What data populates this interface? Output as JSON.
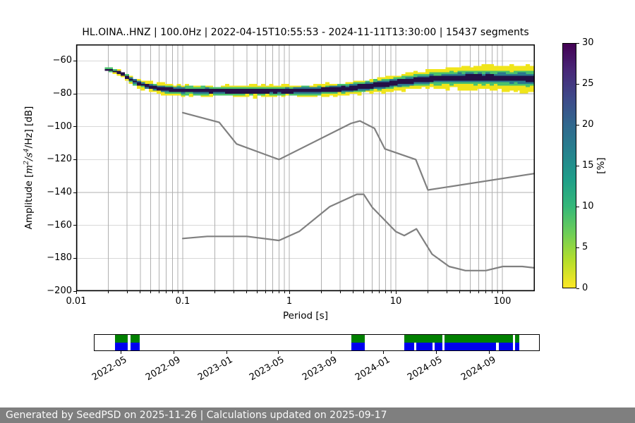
{
  "title": "HL.OINA..HNZ | 100.0Hz | 2022-04-15T10:55:53 - 2024-11-11T13:30:00 | 15437 segments",
  "footer": {
    "text": "Generated by SeedPSD on 2025-11-26 | Calculations updated on 2025-09-17",
    "bg_color": "#7f7f7f",
    "text_color": "#fafafa"
  },
  "chart_data": {
    "type": "heatmap",
    "title": "HL.OINA..HNZ | 100.0Hz | 2022-04-15T10:55:53 - 2024-11-11T13:30:00 | 15437 segments",
    "xlabel": "Period [s]",
    "ylabel": "Amplitude [m²/s⁴/Hz] [dB]",
    "ylabel_parts": {
      "p1": "Amplitude [",
      "m": "m",
      "sup2": "2",
      "s": "/s",
      "sup4": "4",
      "p2": "/Hz] [dB]"
    },
    "xscale": "log",
    "xlim": [
      0.01,
      199
    ],
    "ylim": [
      -200,
      -50
    ],
    "grid": true,
    "grid_color": "#b0b0b0",
    "xticks": [
      {
        "v": 0.01,
        "label": "0.01"
      },
      {
        "v": 0.1,
        "label": "0.1"
      },
      {
        "v": 1,
        "label": "1"
      },
      {
        "v": 10,
        "label": "10"
      },
      {
        "v": 100,
        "label": "100"
      }
    ],
    "yticks": [
      {
        "v": -60,
        "label": "−60"
      },
      {
        "v": -80,
        "label": "−80"
      },
      {
        "v": -100,
        "label": "−100"
      },
      {
        "v": -120,
        "label": "−120"
      },
      {
        "v": -140,
        "label": "−140"
      },
      {
        "v": -160,
        "label": "−160"
      },
      {
        "v": -180,
        "label": "−180"
      },
      {
        "v": -200,
        "label": "−200"
      }
    ],
    "colorbar": {
      "label": "[%]",
      "min": 0,
      "max": 30,
      "ticks": [
        0,
        5,
        10,
        15,
        20,
        25,
        30
      ],
      "colors_bottom_to_top": [
        "#fde725",
        "#b5de2b",
        "#6ece58",
        "#35b779",
        "#1f9e89",
        "#26828e",
        "#31688e",
        "#3e4989",
        "#482878",
        "#440154"
      ]
    },
    "noise_models": {
      "color": "#808080",
      "line_width": 2.2,
      "high_model_points": [
        [
          0.1,
          -91.5
        ],
        [
          0.22,
          -97.4
        ],
        [
          0.32,
          -110.5
        ],
        [
          0.8,
          -120.0
        ],
        [
          3.8,
          -98.0
        ],
        [
          4.6,
          -96.5
        ],
        [
          6.3,
          -101.0
        ],
        [
          7.9,
          -113.5
        ],
        [
          15.4,
          -120.0
        ],
        [
          20.0,
          -138.5
        ],
        [
          199,
          -128.5
        ]
      ],
      "low_model_points": [
        [
          0.1,
          -168.0
        ],
        [
          0.17,
          -166.7
        ],
        [
          0.4,
          -166.7
        ],
        [
          0.8,
          -169.2
        ],
        [
          1.24,
          -163.7
        ],
        [
          2.4,
          -148.6
        ],
        [
          4.3,
          -141.1
        ],
        [
          5.0,
          -141.1
        ],
        [
          6.0,
          -149.0
        ],
        [
          10.0,
          -163.8
        ],
        [
          12.0,
          -166.2
        ],
        [
          15.6,
          -162.1
        ],
        [
          21.9,
          -177.5
        ],
        [
          31.6,
          -185.0
        ],
        [
          45.0,
          -187.5
        ],
        [
          70.0,
          -187.5
        ],
        [
          101.0,
          -185.0
        ],
        [
          154.0,
          -185.0
        ],
        [
          199,
          -185.8
        ]
      ]
    },
    "psd_band": {
      "description": "PSD probability histogram band: period [s], mode amplitude [dB], half-widths [dB] for layers outer->core",
      "layer_colors": [
        "#f0e51b",
        "#4ac16d",
        "#2a788e",
        "#241047"
      ],
      "samples": [
        {
          "p": 0.0185,
          "c": -65.0,
          "w": [
            1.2,
            0.9,
            0.7,
            0.5
          ]
        },
        {
          "p": 0.022,
          "c": -66.3,
          "w": [
            1.5,
            1.1,
            0.8,
            0.6
          ]
        },
        {
          "p": 0.026,
          "c": -68.0,
          "w": [
            1.8,
            1.3,
            0.9,
            0.7
          ]
        },
        {
          "p": 0.03,
          "c": -71.0,
          "w": [
            2.2,
            1.5,
            1.0,
            0.8
          ]
        },
        {
          "p": 0.036,
          "c": -73.3,
          "w": [
            2.5,
            1.7,
            1.1,
            0.9
          ]
        },
        {
          "p": 0.044,
          "c": -75.2,
          "w": [
            2.8,
            1.9,
            1.2,
            1.0
          ]
        },
        {
          "p": 0.055,
          "c": -76.6,
          "w": [
            3.0,
            2.1,
            1.4,
            1.0
          ]
        },
        {
          "p": 0.075,
          "c": -77.6,
          "w": [
            3.2,
            2.2,
            1.5,
            1.1
          ]
        },
        {
          "p": 0.1,
          "c": -78.1,
          "w": [
            3.3,
            2.3,
            1.6,
            1.1
          ]
        },
        {
          "p": 0.25,
          "c": -78.4,
          "w": [
            3.4,
            2.4,
            1.6,
            1.2
          ]
        },
        {
          "p": 0.7,
          "c": -78.4,
          "w": [
            3.5,
            2.4,
            1.7,
            1.2
          ]
        },
        {
          "p": 1.5,
          "c": -78.1,
          "w": [
            3.6,
            2.5,
            1.7,
            1.2
          ]
        },
        {
          "p": 2.2,
          "c": -77.7,
          "w": [
            3.8,
            2.6,
            1.8,
            1.3
          ]
        },
        {
          "p": 3.2,
          "c": -76.9,
          "w": [
            4.0,
            2.7,
            1.9,
            1.3
          ]
        },
        {
          "p": 4.6,
          "c": -75.8,
          "w": [
            4.3,
            2.9,
            2.0,
            1.4
          ]
        },
        {
          "p": 6.8,
          "c": -74.6,
          "w": [
            4.6,
            3.0,
            2.1,
            1.4
          ]
        },
        {
          "p": 10,
          "c": -73.2,
          "w": [
            5.0,
            3.2,
            2.2,
            1.5
          ]
        },
        {
          "p": 15,
          "c": -71.9,
          "w": [
            5.5,
            3.4,
            2.3,
            1.5
          ]
        },
        {
          "p": 22,
          "c": -70.9,
          "w": [
            6.0,
            3.6,
            2.4,
            1.6
          ]
        },
        {
          "p": 33,
          "c": -70.3,
          "w": [
            6.5,
            3.8,
            2.5,
            1.6
          ]
        },
        {
          "p": 48,
          "c": -70.1,
          "w": [
            7.0,
            4.0,
            2.6,
            1.7
          ]
        },
        {
          "p": 70,
          "c": -70.2,
          "w": [
            7.4,
            4.2,
            2.7,
            1.7
          ]
        },
        {
          "p": 100,
          "c": -70.4,
          "w": [
            7.8,
            4.4,
            2.8,
            1.8
          ]
        },
        {
          "p": 140,
          "c": -70.6,
          "w": [
            8.0,
            4.5,
            2.9,
            1.8
          ]
        },
        {
          "p": 190,
          "c": -70.8,
          "w": [
            8.2,
            4.6,
            3.0,
            1.8
          ]
        }
      ],
      "outlier_cells": [
        {
          "p_range": [
            145,
            175
          ],
          "db_range": [
            -77.5,
            -79.8
          ],
          "color": "#f0e51b"
        }
      ]
    }
  },
  "timeline": {
    "xticks": [
      {
        "f": 0.0609,
        "label": "2022-05"
      },
      {
        "f": 0.1797,
        "label": "2022-09"
      },
      {
        "f": 0.2976,
        "label": "2023-01"
      },
      {
        "f": 0.4134,
        "label": "2023-05"
      },
      {
        "f": 0.5323,
        "label": "2023-09"
      },
      {
        "f": 0.6502,
        "label": "2024-01"
      },
      {
        "f": 0.768,
        "label": "2024-05"
      },
      {
        "f": 0.8869,
        "label": "2024-09"
      }
    ],
    "rows": [
      {
        "name": "coverage-data",
        "color": "#008000",
        "segments": [
          [
            0.0459,
            0.0744
          ],
          [
            0.0807,
            0.1013
          ],
          [
            0.5775,
            0.6076
          ],
          [
            0.6962,
            0.7832
          ],
          [
            0.7872,
            0.9415
          ],
          [
            0.9462,
            0.9557
          ]
        ]
      },
      {
        "name": "coverage-psd",
        "color": "#0000ee",
        "segments": [
          [
            0.0459,
            0.0744
          ],
          [
            0.0807,
            0.1013
          ],
          [
            0.5775,
            0.6076
          ],
          [
            0.6962,
            0.7184
          ],
          [
            0.7231,
            0.7611
          ],
          [
            0.7658,
            0.7832
          ],
          [
            0.7872,
            0.9035
          ],
          [
            0.9098,
            0.9415
          ],
          [
            0.9462,
            0.9557
          ]
        ]
      }
    ]
  }
}
